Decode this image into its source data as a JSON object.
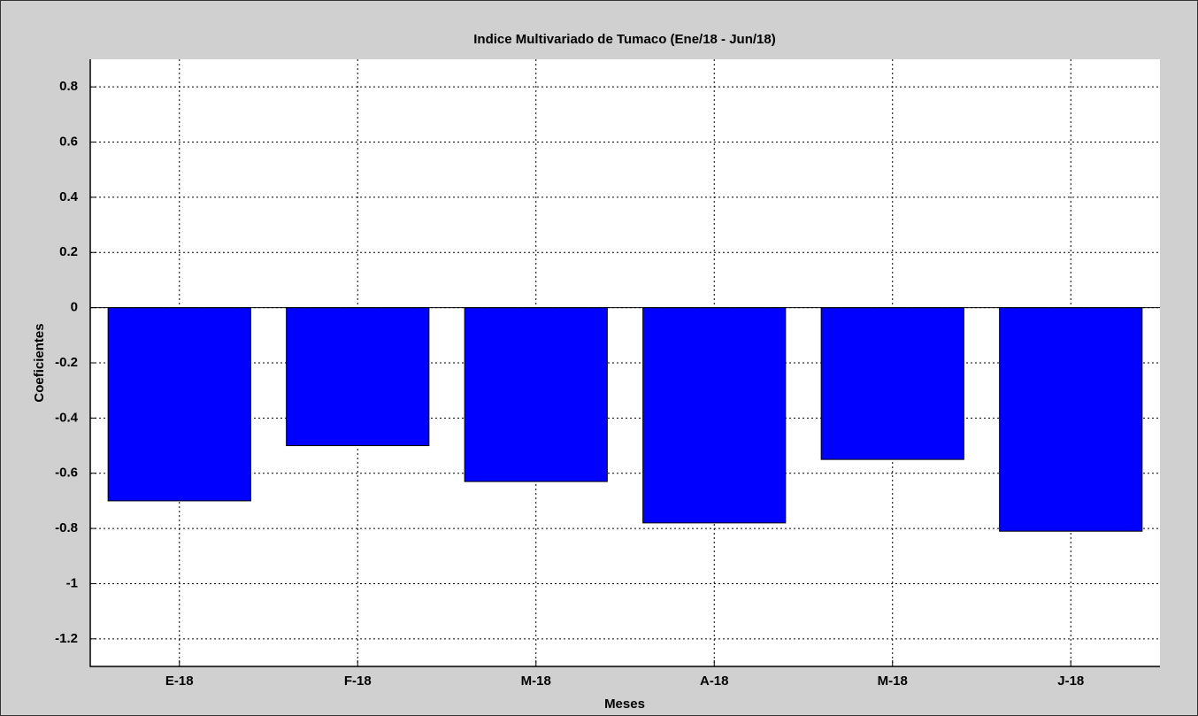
{
  "chart_data": {
    "type": "bar",
    "title": "Indice Multivariado de Tumaco (Ene/18 - Jun/18)",
    "x_label": "Meses",
    "y_label": "Coeficientes",
    "categories": [
      "E-18",
      "F-18",
      "M-18",
      "A-18",
      "M-18",
      "J-18"
    ],
    "values": [
      -0.7,
      -0.5,
      -0.63,
      -0.78,
      -0.55,
      -0.81
    ],
    "color": "#0000ff",
    "ylim": [
      -1.3,
      0.9
    ],
    "yticks": [
      -1.2,
      -1,
      -0.8,
      -0.6,
      -0.4,
      -0.2,
      0,
      0.2,
      0.4,
      0.6,
      0.8
    ],
    "grid": true
  }
}
